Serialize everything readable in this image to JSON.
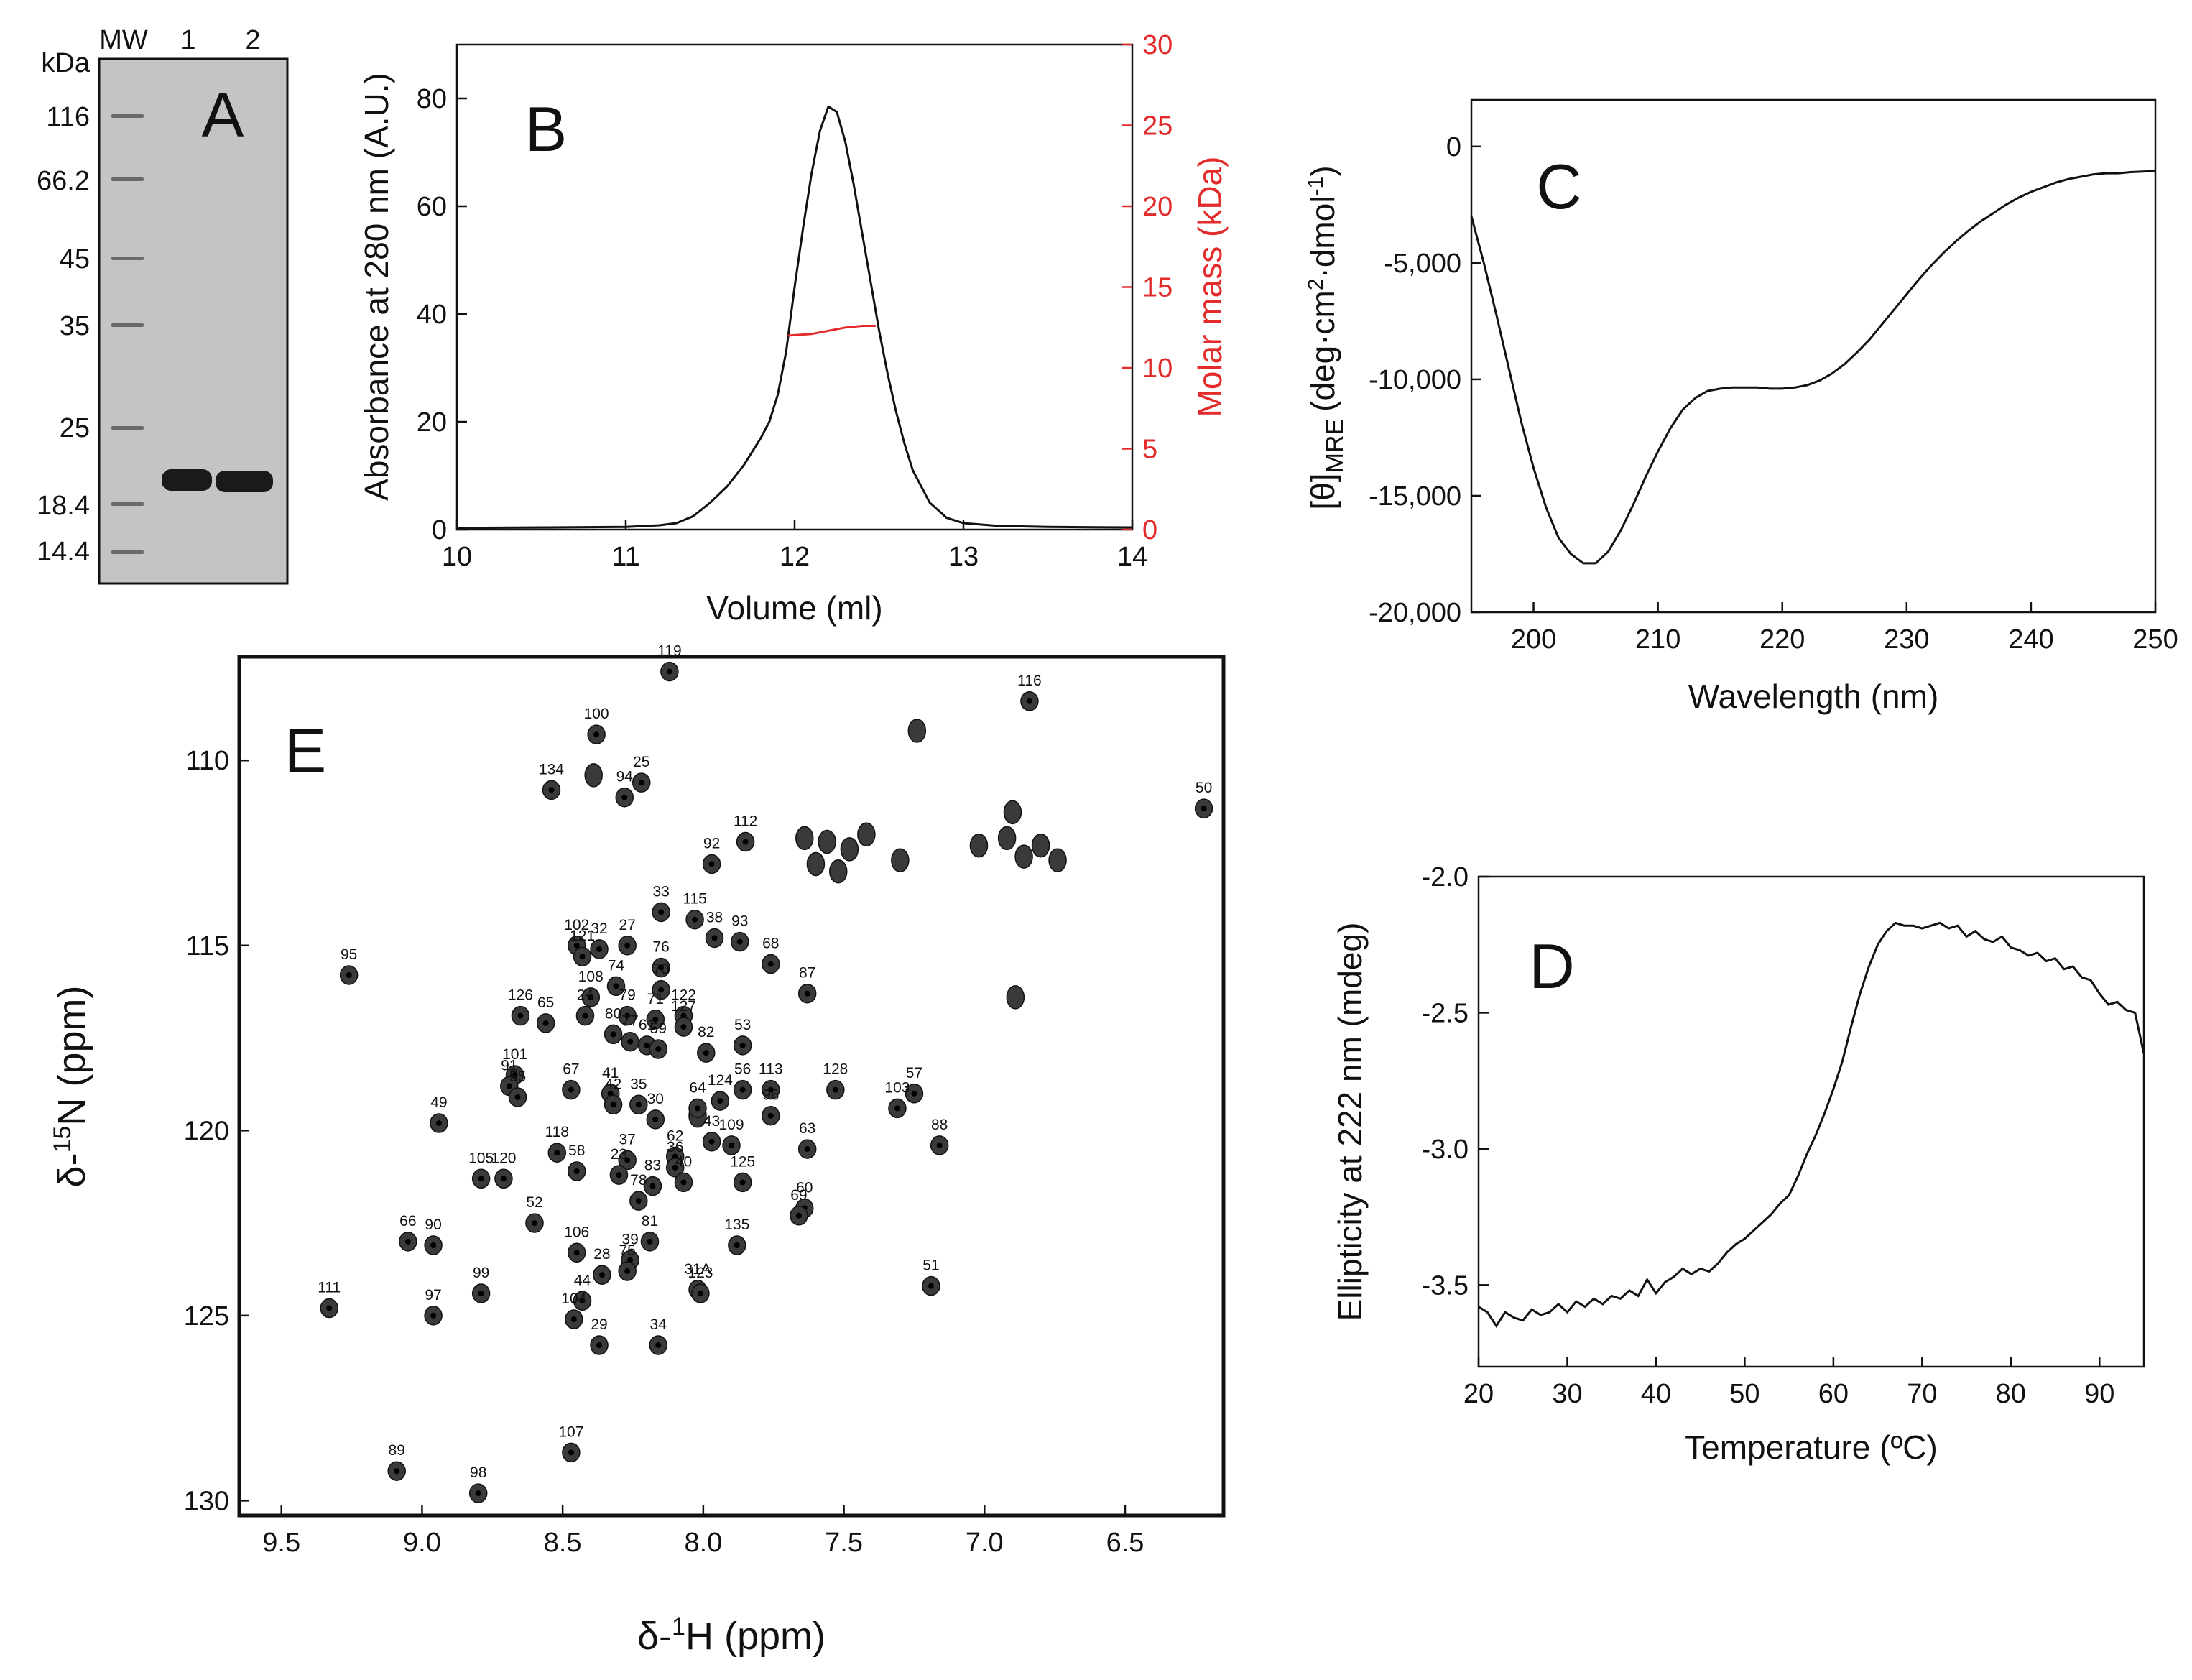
{
  "colors": {
    "black": "#111111",
    "red": "#e32b2b",
    "gel_bg": "#c4c4c4",
    "gel_band": "#1a1a1a",
    "peak_fill": "#3a3a3a"
  },
  "chart_data": [
    {
      "panel": "A",
      "type": "gel",
      "panel_label": "A",
      "lanes": [
        "MW",
        "1",
        "2"
      ],
      "unit_label": "kDa",
      "markers_kda": [
        "116",
        "66.2",
        "45",
        "35",
        "25",
        "18.4",
        "14.4"
      ],
      "sample_band_kda": 19.5
    },
    {
      "panel": "B",
      "type": "line",
      "panel_label": "B",
      "xlabel": "Volume (ml)",
      "ylabel": "Absorbance at 280 nm (A.U.)",
      "y2label": "Molar mass (kDa)",
      "xlim": [
        10,
        14
      ],
      "ylim": [
        0,
        90
      ],
      "y2lim": [
        0,
        30
      ],
      "xticks": [
        "10",
        "11",
        "12",
        "13",
        "14"
      ],
      "yticks": [
        "0",
        "20",
        "40",
        "60",
        "80"
      ],
      "y2ticks": [
        "0",
        "5",
        "10",
        "15",
        "20",
        "25",
        "30"
      ],
      "series": [
        {
          "name": "Absorbance",
          "axis": "left",
          "color": "#111111",
          "x": [
            10.0,
            10.5,
            11.0,
            11.2,
            11.3,
            11.4,
            11.5,
            11.6,
            11.7,
            11.8,
            11.85,
            11.9,
            11.95,
            12.0,
            12.05,
            12.1,
            12.15,
            12.2,
            12.25,
            12.3,
            12.35,
            12.4,
            12.45,
            12.5,
            12.55,
            12.6,
            12.65,
            12.7,
            12.8,
            12.9,
            13.0,
            13.2,
            13.5,
            14.0
          ],
          "y": [
            0.3,
            0.4,
            0.5,
            0.8,
            1.2,
            2.5,
            5.0,
            8.0,
            12.0,
            17.0,
            20.0,
            25.0,
            33.0,
            45.0,
            56.0,
            66.0,
            74.0,
            78.5,
            77.5,
            72.0,
            64.0,
            55.0,
            46.0,
            37.0,
            29.0,
            22.0,
            16.0,
            11.0,
            5.0,
            2.2,
            1.2,
            0.7,
            0.5,
            0.4
          ]
        },
        {
          "name": "Molar mass",
          "axis": "right",
          "color": "#e32b2b",
          "x": [
            11.96,
            12.1,
            12.2,
            12.3,
            12.4,
            12.48
          ],
          "y": [
            12.0,
            12.1,
            12.3,
            12.5,
            12.6,
            12.6
          ]
        }
      ]
    },
    {
      "panel": "C",
      "type": "line",
      "panel_label": "C",
      "xlabel": "Wavelength (nm)",
      "ylabel_main": "[θ]",
      "ylabel_sub": "MRE",
      "ylabel_unit": "(deg·cm",
      "ylabel_sup1": "2",
      "ylabel_mid": "·dmol",
      "ylabel_sup2": "-1",
      "ylabel_end": ")",
      "xlim": [
        195,
        250
      ],
      "ylim": [
        -20000,
        2000
      ],
      "xticks": [
        "200",
        "210",
        "220",
        "230",
        "240",
        "250"
      ],
      "yticks": [
        "-20,000",
        "-15,000",
        "-10,000",
        "-5,000",
        "0"
      ],
      "series": [
        {
          "name": "CD spectrum",
          "color": "#111111",
          "x": [
            195,
            196,
            197,
            198,
            199,
            200,
            201,
            202,
            203,
            204,
            205,
            206,
            207,
            208,
            209,
            210,
            211,
            212,
            213,
            214,
            215,
            216,
            217,
            218,
            219,
            220,
            221,
            222,
            223,
            224,
            225,
            226,
            227,
            228,
            229,
            230,
            231,
            232,
            233,
            234,
            235,
            236,
            237,
            238,
            239,
            240,
            241,
            242,
            243,
            244,
            245,
            246,
            247,
            248,
            249,
            250
          ],
          "y": [
            -3000,
            -5000,
            -7200,
            -9500,
            -11800,
            -13800,
            -15500,
            -16800,
            -17500,
            -17900,
            -17900,
            -17400,
            -16500,
            -15400,
            -14200,
            -13100,
            -12100,
            -11300,
            -10800,
            -10500,
            -10400,
            -10350,
            -10350,
            -10350,
            -10400,
            -10400,
            -10350,
            -10250,
            -10050,
            -9750,
            -9350,
            -8850,
            -8300,
            -7650,
            -7000,
            -6350,
            -5700,
            -5100,
            -4550,
            -4050,
            -3600,
            -3200,
            -2850,
            -2500,
            -2200,
            -1950,
            -1750,
            -1550,
            -1400,
            -1300,
            -1200,
            -1150,
            -1150,
            -1100,
            -1080,
            -1050
          ]
        }
      ]
    },
    {
      "panel": "D",
      "type": "line",
      "panel_label": "D",
      "xlabel": "Temperature (ºC)",
      "ylabel": "Ellipticity at 222 nm (mdeg)",
      "xlim": [
        20,
        95
      ],
      "ylim": [
        -3.8,
        -2.0
      ],
      "xticks": [
        "20",
        "30",
        "40",
        "50",
        "60",
        "70",
        "80",
        "90"
      ],
      "yticks": [
        "-3.5",
        "-3.0",
        "-2.5",
        "-2.0"
      ],
      "series": [
        {
          "name": "Thermal denaturation",
          "color": "#111111",
          "x": [
            20,
            21,
            22,
            23,
            24,
            25,
            26,
            27,
            28,
            29,
            30,
            31,
            32,
            33,
            34,
            35,
            36,
            37,
            38,
            39,
            40,
            41,
            42,
            43,
            44,
            45,
            46,
            47,
            48,
            49,
            50,
            51,
            52,
            53,
            54,
            55,
            56,
            57,
            58,
            59,
            60,
            61,
            62,
            63,
            64,
            65,
            66,
            67,
            68,
            69,
            70,
            71,
            72,
            73,
            74,
            75,
            76,
            77,
            78,
            79,
            80,
            81,
            82,
            83,
            84,
            85,
            86,
            87,
            88,
            89,
            90,
            91,
            92,
            93,
            94,
            95
          ],
          "y": [
            -3.58,
            -3.6,
            -3.65,
            -3.6,
            -3.62,
            -3.63,
            -3.59,
            -3.61,
            -3.6,
            -3.57,
            -3.6,
            -3.56,
            -3.58,
            -3.55,
            -3.57,
            -3.54,
            -3.55,
            -3.52,
            -3.54,
            -3.48,
            -3.53,
            -3.49,
            -3.47,
            -3.44,
            -3.46,
            -3.44,
            -3.45,
            -3.42,
            -3.38,
            -3.35,
            -3.33,
            -3.3,
            -3.27,
            -3.24,
            -3.2,
            -3.17,
            -3.1,
            -3.02,
            -2.95,
            -2.87,
            -2.78,
            -2.68,
            -2.55,
            -2.43,
            -2.33,
            -2.25,
            -2.2,
            -2.17,
            -2.18,
            -2.18,
            -2.19,
            -2.18,
            -2.17,
            -2.19,
            -2.18,
            -2.22,
            -2.2,
            -2.23,
            -2.24,
            -2.22,
            -2.26,
            -2.27,
            -2.29,
            -2.28,
            -2.31,
            -2.3,
            -2.34,
            -2.33,
            -2.37,
            -2.38,
            -2.43,
            -2.47,
            -2.46,
            -2.49,
            -2.5,
            -2.65
          ]
        }
      ]
    },
    {
      "panel": "E",
      "type": "scatter",
      "panel_label": "E",
      "xlabel_pre": "δ-",
      "xlabel_sup": "1",
      "xlabel_post": "H (ppm)",
      "ylabel_pre": "δ-",
      "ylabel_sup": "15",
      "ylabel_post": "N (ppm)",
      "xlim": [
        9.65,
        6.15
      ],
      "ylim": [
        130.4,
        107.2
      ],
      "xticks": [
        "9.5",
        "9.0",
        "8.5",
        "8.0",
        "7.5",
        "7.0",
        "6.5"
      ],
      "yticks": [
        "110",
        "115",
        "120",
        "125",
        "130"
      ],
      "peaks": [
        {
          "id": "119",
          "h": 8.12,
          "n": 107.6
        },
        {
          "id": "116",
          "h": 6.84,
          "n": 108.4
        },
        {
          "id": "100",
          "h": 8.38,
          "n": 109.3
        },
        {
          "id": "25",
          "h": 8.22,
          "n": 110.6
        },
        {
          "id": "94",
          "h": 8.28,
          "n": 111.0
        },
        {
          "id": "134",
          "h": 8.54,
          "n": 110.8
        },
        {
          "id": "50",
          "h": 6.22,
          "n": 111.3
        },
        {
          "id": "92",
          "h": 7.97,
          "n": 112.8
        },
        {
          "id": "112",
          "h": 7.85,
          "n": 112.2
        },
        {
          "id": "33",
          "h": 8.15,
          "n": 114.1
        },
        {
          "id": "115",
          "h": 8.03,
          "n": 114.3
        },
        {
          "id": "38",
          "h": 7.96,
          "n": 114.8
        },
        {
          "id": "93",
          "h": 7.87,
          "n": 114.9
        },
        {
          "id": "102",
          "h": 8.45,
          "n": 115.0
        },
        {
          "id": "121",
          "h": 8.43,
          "n": 115.3
        },
        {
          "id": "32",
          "h": 8.37,
          "n": 115.1
        },
        {
          "id": "27",
          "h": 8.27,
          "n": 115.0
        },
        {
          "id": "76",
          "h": 8.15,
          "n": 115.6
        },
        {
          "id": "68",
          "h": 7.76,
          "n": 115.5
        },
        {
          "id": "95",
          "h": 9.26,
          "n": 115.8
        },
        {
          "id": "108",
          "h": 8.4,
          "n": 116.4
        },
        {
          "id": "74",
          "h": 8.31,
          "n": 116.1
        },
        {
          "id": "70",
          "h": 8.15,
          "n": 116.2
        },
        {
          "id": "87",
          "h": 7.63,
          "n": 116.3
        },
        {
          "id": "126",
          "h": 8.65,
          "n": 116.9
        },
        {
          "id": "65",
          "h": 8.56,
          "n": 117.1
        },
        {
          "id": "24",
          "h": 8.42,
          "n": 116.9
        },
        {
          "id": "79",
          "h": 8.27,
          "n": 116.9
        },
        {
          "id": "71",
          "h": 8.17,
          "n": 117.0
        },
        {
          "id": "122",
          "h": 8.07,
          "n": 116.9
        },
        {
          "id": "127",
          "h": 8.07,
          "n": 117.2
        },
        {
          "id": "80",
          "h": 8.32,
          "n": 117.4
        },
        {
          "id": "77",
          "h": 8.26,
          "n": 117.6
        },
        {
          "id": "61",
          "h": 8.2,
          "n": 117.7
        },
        {
          "id": "59",
          "h": 8.16,
          "n": 117.8
        },
        {
          "id": "82",
          "h": 7.99,
          "n": 117.9
        },
        {
          "id": "53",
          "h": 7.86,
          "n": 117.7
        },
        {
          "id": "113",
          "h": 7.76,
          "n": 118.9
        },
        {
          "id": "56",
          "h": 7.86,
          "n": 118.9
        },
        {
          "id": "128",
          "h": 7.53,
          "n": 118.9
        },
        {
          "id": "57",
          "h": 7.25,
          "n": 119.0
        },
        {
          "id": "103",
          "h": 7.31,
          "n": 119.4
        },
        {
          "id": "101",
          "h": 8.67,
          "n": 118.5
        },
        {
          "id": "91",
          "h": 8.69,
          "n": 118.8
        },
        {
          "id": "55",
          "h": 8.66,
          "n": 119.1
        },
        {
          "id": "67",
          "h": 8.47,
          "n": 118.9
        },
        {
          "id": "41",
          "h": 8.33,
          "n": 119.0
        },
        {
          "id": "42",
          "h": 8.32,
          "n": 119.3
        },
        {
          "id": "35",
          "h": 8.23,
          "n": 119.3
        },
        {
          "id": "30",
          "h": 8.17,
          "n": 119.7
        },
        {
          "id": "64",
          "h": 8.02,
          "n": 119.4
        },
        {
          "id": "124",
          "h": 7.94,
          "n": 119.2
        },
        {
          "id": "96",
          "h": 7.76,
          "n": 119.6
        },
        {
          "id": "49",
          "h": 8.94,
          "n": 119.8
        },
        {
          "id": "63",
          "h": 7.63,
          "n": 120.5
        },
        {
          "id": "88",
          "h": 7.16,
          "n": 120.4
        },
        {
          "id": "118",
          "h": 8.52,
          "n": 120.6
        },
        {
          "id": "58",
          "h": 8.45,
          "n": 121.1
        },
        {
          "id": "43",
          "h": 7.97,
          "n": 120.3
        },
        {
          "id": "109",
          "h": 7.9,
          "n": 120.4
        },
        {
          "id": "105",
          "h": 8.79,
          "n": 121.3
        },
        {
          "id": "120",
          "h": 8.71,
          "n": 121.3
        },
        {
          "id": "37",
          "h": 8.27,
          "n": 120.8
        },
        {
          "id": "62",
          "h": 8.1,
          "n": 120.7
        },
        {
          "id": "23",
          "h": 8.3,
          "n": 121.2
        },
        {
          "id": "83",
          "h": 8.18,
          "n": 121.5
        },
        {
          "id": "36",
          "h": 8.1,
          "n": 121.0
        },
        {
          "id": "40",
          "h": 8.07,
          "n": 121.4
        },
        {
          "id": "125",
          "h": 7.86,
          "n": 121.4
        },
        {
          "id": "66",
          "h": 9.05,
          "n": 123.0
        },
        {
          "id": "90",
          "h": 8.96,
          "n": 123.1
        },
        {
          "id": "52",
          "h": 8.6,
          "n": 122.5
        },
        {
          "id": "78",
          "h": 8.23,
          "n": 121.9
        },
        {
          "id": "106",
          "h": 8.45,
          "n": 123.3
        },
        {
          "id": "81",
          "h": 8.19,
          "n": 123.0
        },
        {
          "id": "39",
          "h": 8.26,
          "n": 123.5
        },
        {
          "id": "60",
          "h": 7.64,
          "n": 122.1
        },
        {
          "id": "69",
          "h": 7.66,
          "n": 122.3
        },
        {
          "id": "135",
          "h": 7.88,
          "n": 123.1
        },
        {
          "id": "51",
          "h": 7.19,
          "n": 124.2
        },
        {
          "id": "28",
          "h": 8.36,
          "n": 123.9
        },
        {
          "id": "75",
          "h": 8.27,
          "n": 123.8
        },
        {
          "id": "44",
          "h": 8.43,
          "n": 124.6
        },
        {
          "id": "31A",
          "h": 8.02,
          "n": 124.3
        },
        {
          "id": "123",
          "h": 8.01,
          "n": 124.4
        },
        {
          "id": "111",
          "h": 9.33,
          "n": 124.8
        },
        {
          "id": "97",
          "h": 8.96,
          "n": 125.0
        },
        {
          "id": "99",
          "h": 8.79,
          "n": 124.4
        },
        {
          "id": "104",
          "h": 8.46,
          "n": 125.1
        },
        {
          "id": "29",
          "h": 8.37,
          "n": 125.8
        },
        {
          "id": "34",
          "h": 8.16,
          "n": 125.8
        },
        {
          "id": "107",
          "h": 8.47,
          "n": 128.7
        },
        {
          "id": "89",
          "h": 9.09,
          "n": 129.2
        },
        {
          "id": "98",
          "h": 8.8,
          "n": 129.8
        }
      ],
      "unlabeled_peaks": [
        {
          "h": 7.64,
          "n": 112.1
        },
        {
          "h": 7.56,
          "n": 112.2
        },
        {
          "h": 7.48,
          "n": 112.4
        },
        {
          "h": 7.6,
          "n": 112.8
        },
        {
          "h": 7.52,
          "n": 113.0
        },
        {
          "h": 7.42,
          "n": 112.0
        },
        {
          "h": 7.3,
          "n": 112.7
        },
        {
          "h": 7.02,
          "n": 112.3
        },
        {
          "h": 6.92,
          "n": 112.1
        },
        {
          "h": 6.86,
          "n": 112.6
        },
        {
          "h": 6.8,
          "n": 112.3
        },
        {
          "h": 6.74,
          "n": 112.7
        },
        {
          "h": 6.9,
          "n": 111.4
        },
        {
          "h": 6.89,
          "n": 116.4
        },
        {
          "h": 8.02,
          "n": 119.6
        },
        {
          "h": 8.39,
          "n": 110.4
        },
        {
          "h": 7.24,
          "n": 109.2
        }
      ]
    }
  ]
}
